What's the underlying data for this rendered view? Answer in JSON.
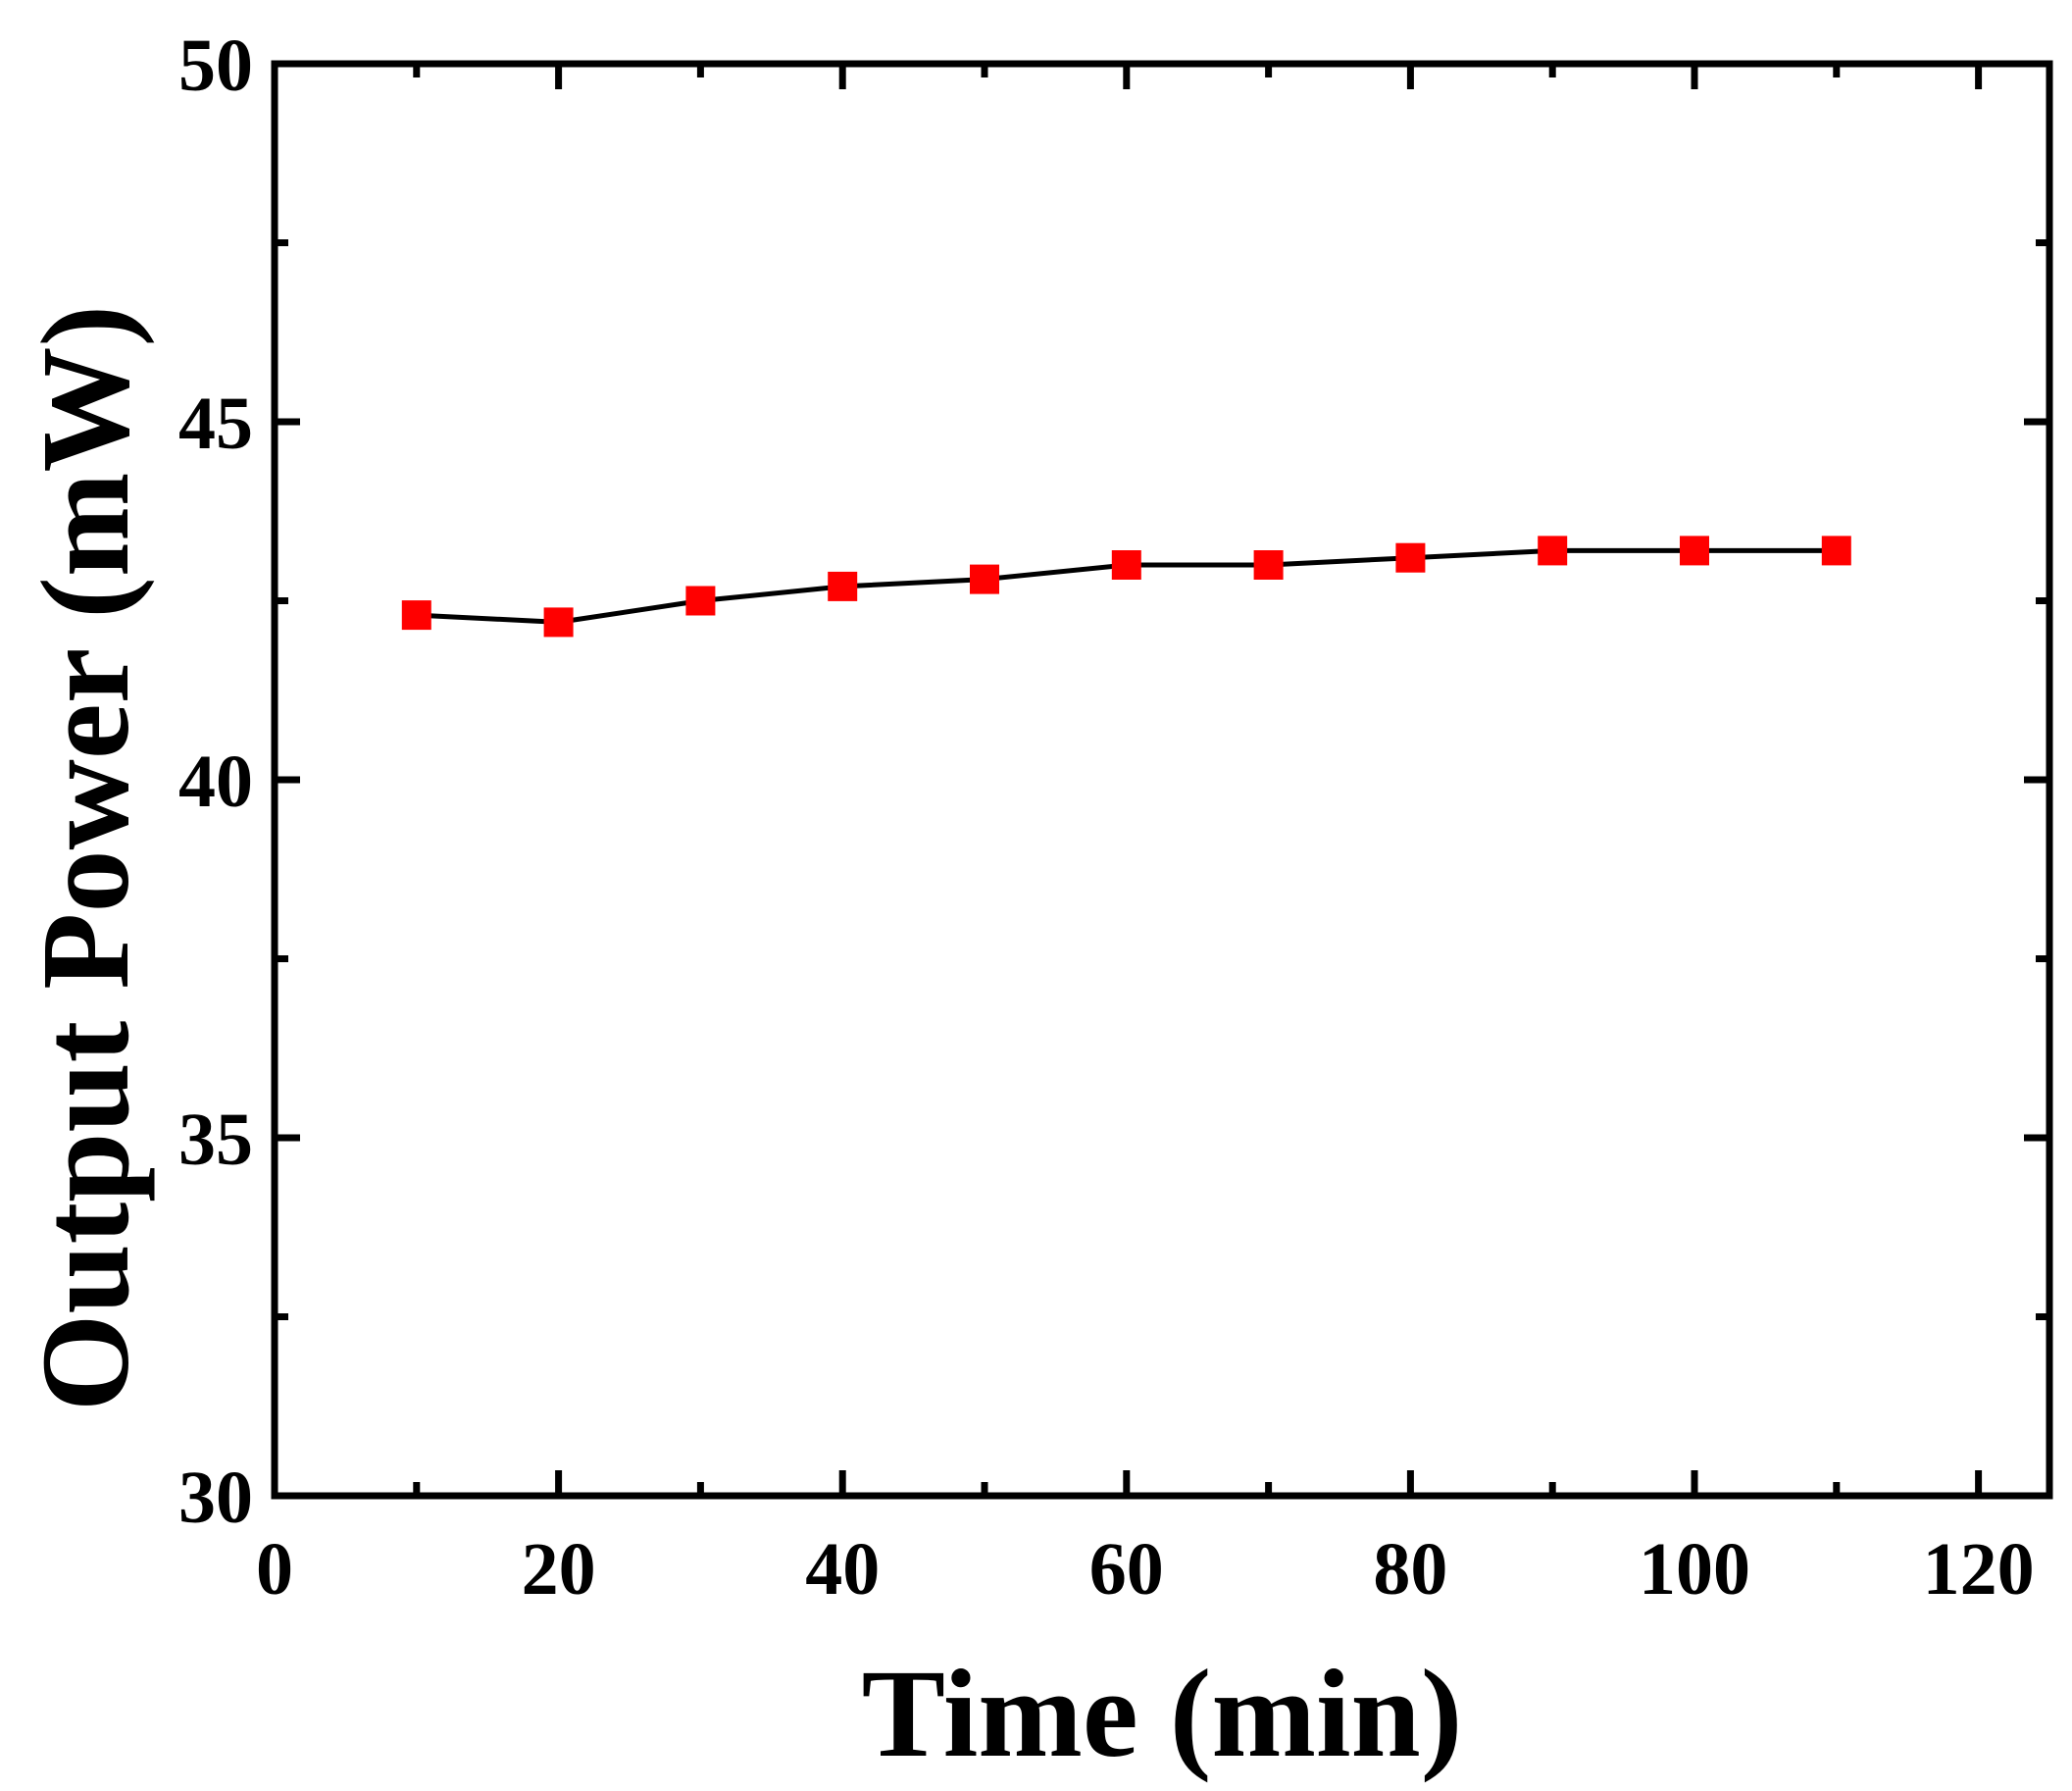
{
  "chart_data": {
    "type": "line",
    "title": "",
    "xlabel": "Time (min)",
    "ylabel": "Output Power (mW)",
    "xlim": [
      0,
      125
    ],
    "ylim": [
      30,
      50
    ],
    "x_ticks": [
      0,
      20,
      40,
      60,
      80,
      100,
      120
    ],
    "x_tick_labels": [
      "0",
      "20",
      "40",
      "60",
      "80",
      "100",
      "120"
    ],
    "x_minor_ticks": [
      10,
      30,
      50,
      70,
      90,
      110
    ],
    "y_ticks": [
      30,
      35,
      40,
      45,
      50
    ],
    "y_tick_labels": [
      "30",
      "35",
      "40",
      "45",
      "50"
    ],
    "y_minor_ticks": [
      32.5,
      37.5,
      42.5,
      47.5
    ],
    "grid": false,
    "legend": "none",
    "series": [
      {
        "marker": "square",
        "marker_color": "#ff0000",
        "line_color": "#000000",
        "x": [
          10,
          20,
          30,
          40,
          50,
          60,
          70,
          80,
          90,
          100,
          110
        ],
        "y": [
          42.3,
          42.2,
          42.5,
          42.7,
          42.8,
          43.0,
          43.0,
          43.1,
          43.2,
          43.2,
          43.2
        ]
      }
    ]
  }
}
